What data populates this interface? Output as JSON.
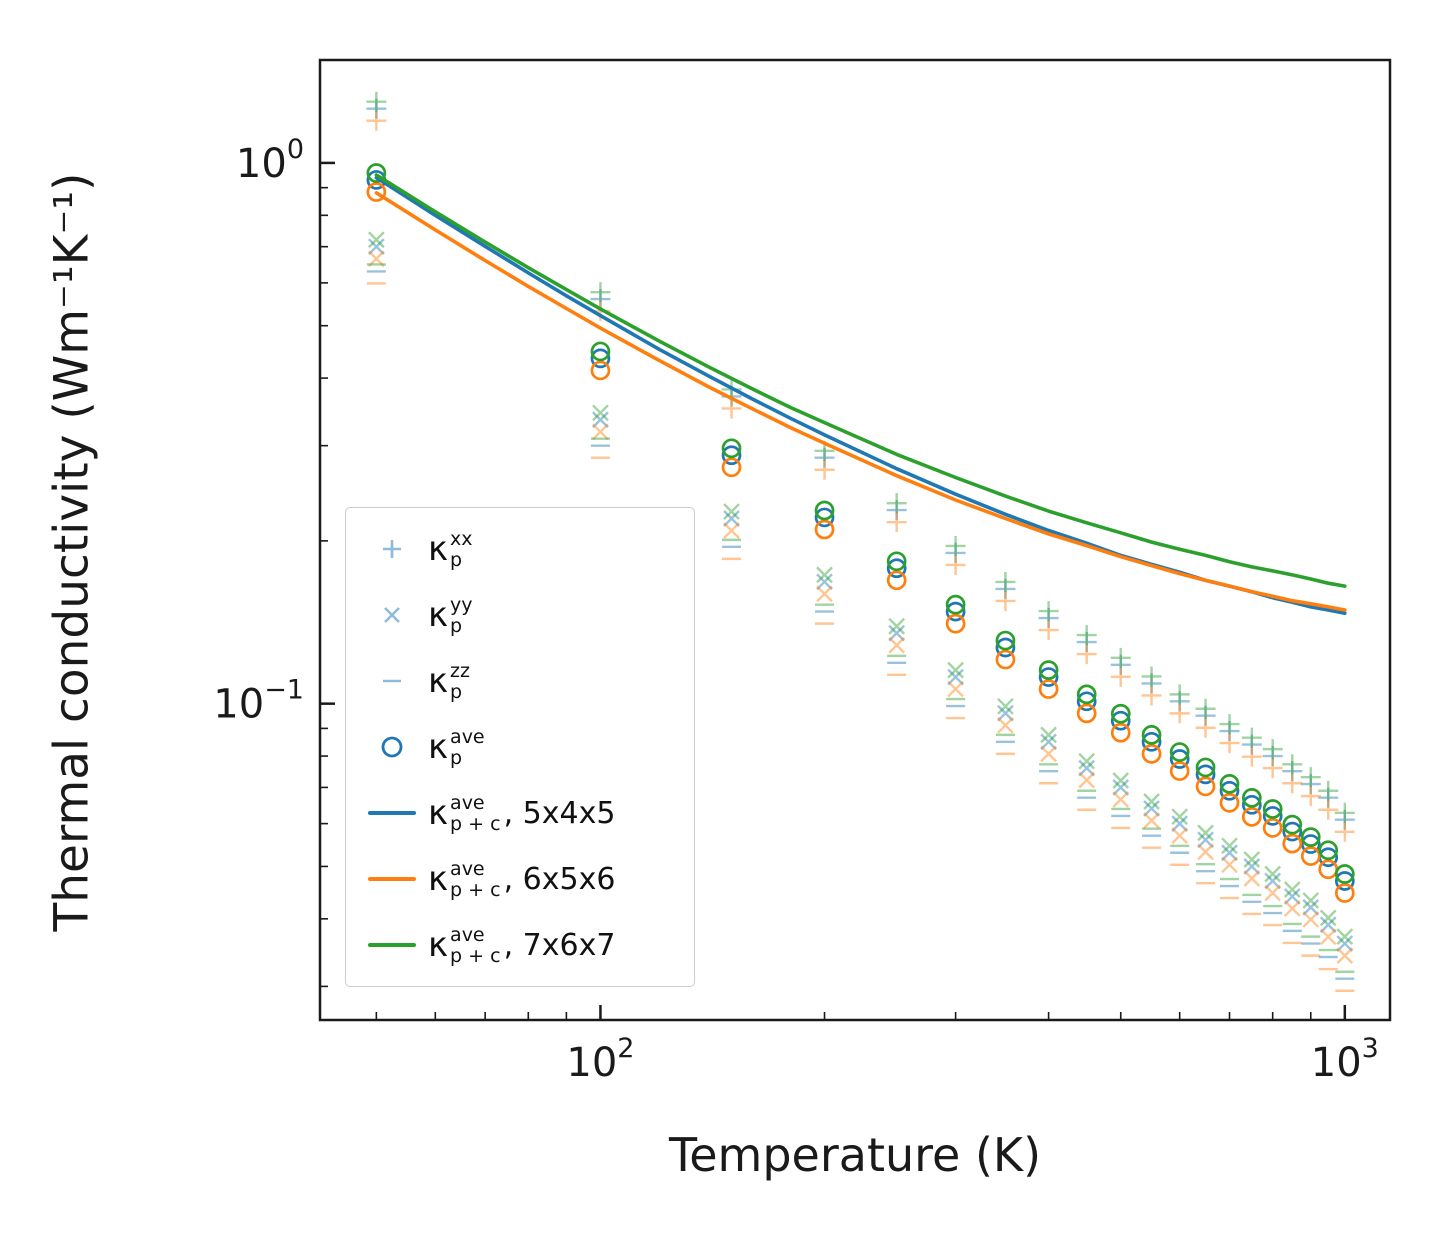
{
  "chart_data": {
    "type": "scatter+line",
    "xscale": "log",
    "yscale": "log",
    "grid": false,
    "xlabel": "Temperature (K)",
    "ylabel": "Thermal conductivity (Wm⁻¹K⁻¹)",
    "xlim": [
      42,
      1150
    ],
    "ylim": [
      0.026,
      1.55
    ],
    "x_ticks": [
      {
        "value": 100,
        "exp": "2"
      },
      {
        "value": 1000,
        "exp": "3"
      }
    ],
    "y_ticks": [
      {
        "value": 1,
        "exp": "0"
      },
      {
        "value": 0.1,
        "exp": "−1"
      }
    ],
    "marker_alpha": 0.45,
    "temperatures": [
      50,
      100,
      150,
      200,
      250,
      300,
      350,
      400,
      450,
      500,
      550,
      600,
      650,
      700,
      750,
      800,
      850,
      900,
      950,
      1000
    ],
    "sizes": [
      {
        "name": "5x4x5",
        "color": "#1f77b4",
        "factor": 1.0
      },
      {
        "name": "6x5x6",
        "color": "#ff7f0e",
        "factor": 0.95
      },
      {
        "name": "7x6x7",
        "color": "#2ca02c",
        "factor": 1.03
      }
    ],
    "scatter_series": [
      {
        "key": "kappa_p_xx",
        "marker": "plus",
        "values": [
          1.26,
          0.56,
          0.37,
          0.285,
          0.228,
          0.19,
          0.163,
          0.144,
          0.13,
          0.118,
          0.109,
          0.101,
          0.095,
          0.089,
          0.084,
          0.08,
          0.075,
          0.071,
          0.067,
          0.061
        ]
      },
      {
        "key": "kappa_p_yy",
        "marker": "x",
        "values": [
          0.7,
          0.335,
          0.22,
          0.168,
          0.135,
          0.112,
          0.096,
          0.085,
          0.076,
          0.07,
          0.064,
          0.06,
          0.056,
          0.053,
          0.05,
          0.047,
          0.044,
          0.042,
          0.039,
          0.036
        ]
      },
      {
        "key": "kappa_p_zz",
        "marker": "minus",
        "values": [
          0.63,
          0.3,
          0.195,
          0.148,
          0.119,
          0.099,
          0.085,
          0.075,
          0.067,
          0.062,
          0.057,
          0.053,
          0.049,
          0.046,
          0.043,
          0.041,
          0.038,
          0.036,
          0.034,
          0.031
        ]
      },
      {
        "key": "kappa_p_ave",
        "marker": "circle",
        "values": [
          0.93,
          0.435,
          0.288,
          0.221,
          0.178,
          0.148,
          0.127,
          0.112,
          0.101,
          0.093,
          0.085,
          0.079,
          0.074,
          0.069,
          0.065,
          0.062,
          0.058,
          0.055,
          0.052,
          0.047
        ]
      }
    ],
    "lines": {
      "temperatures": [
        50,
        60,
        70,
        80,
        90,
        100,
        120,
        140,
        160,
        180,
        200,
        250,
        300,
        350,
        400,
        450,
        500,
        550,
        600,
        650,
        700,
        750,
        800,
        850,
        900,
        950,
        1000
      ],
      "series": [
        {
          "name": "kappa_p+c_ave_5x4x5",
          "color": "#1f77b4",
          "values": [
            0.939,
            0.8,
            0.701,
            0.626,
            0.568,
            0.522,
            0.452,
            0.403,
            0.366,
            0.337,
            0.314,
            0.272,
            0.244,
            0.224,
            0.209,
            0.198,
            0.188,
            0.181,
            0.175,
            0.169,
            0.165,
            0.161,
            0.157,
            0.154,
            0.151,
            0.149,
            0.147
          ]
        },
        {
          "name": "kappa_p+c_ave_6x5x6",
          "color": "#ff7f0e",
          "values": [
            0.88,
            0.752,
            0.66,
            0.591,
            0.538,
            0.495,
            0.431,
            0.385,
            0.351,
            0.324,
            0.303,
            0.264,
            0.238,
            0.22,
            0.206,
            0.196,
            0.187,
            0.18,
            0.174,
            0.169,
            0.165,
            0.161,
            0.158,
            0.155,
            0.153,
            0.151,
            0.149
          ]
        },
        {
          "name": "kappa_p+c_ave_7x6x7",
          "color": "#2ca02c",
          "values": [
            0.95,
            0.812,
            0.714,
            0.64,
            0.583,
            0.537,
            0.468,
            0.419,
            0.382,
            0.353,
            0.331,
            0.289,
            0.262,
            0.242,
            0.227,
            0.216,
            0.207,
            0.199,
            0.193,
            0.188,
            0.183,
            0.179,
            0.176,
            0.173,
            0.17,
            0.167,
            0.165
          ]
        }
      ]
    }
  },
  "legend": {
    "entries": [
      {
        "type": "marker",
        "marker": "plus",
        "color": "#1f77b4",
        "base": "κ",
        "sup": "xx",
        "sub": "p",
        "rest": ""
      },
      {
        "type": "marker",
        "marker": "x",
        "color": "#1f77b4",
        "base": "κ",
        "sup": "yy",
        "sub": "p",
        "rest": ""
      },
      {
        "type": "marker",
        "marker": "minus",
        "color": "#1f77b4",
        "base": "κ",
        "sup": "zz",
        "sub": "p",
        "rest": ""
      },
      {
        "type": "marker",
        "marker": "circle",
        "color": "#1f77b4",
        "base": "κ",
        "sup": "ave",
        "sub": "p",
        "rest": ""
      },
      {
        "type": "line",
        "color": "#1f77b4",
        "base": "κ",
        "sup": "ave",
        "sub": "p + c",
        "rest": ", 5x4x5"
      },
      {
        "type": "line",
        "color": "#ff7f0e",
        "base": "κ",
        "sup": "ave",
        "sub": "p + c",
        "rest": ", 6x5x6"
      },
      {
        "type": "line",
        "color": "#2ca02c",
        "base": "κ",
        "sup": "ave",
        "sub": "p + c",
        "rest": ", 7x6x7"
      }
    ]
  }
}
